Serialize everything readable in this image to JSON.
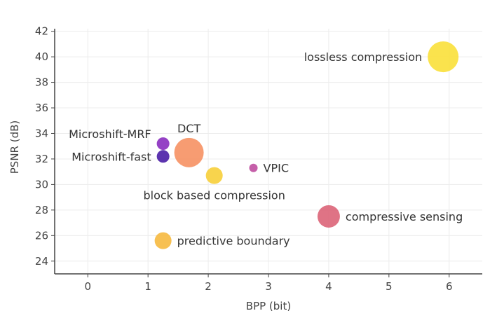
{
  "chart_data": {
    "type": "scatter",
    "title": "",
    "xlabel": "BPP (bit)",
    "ylabel": "PSNR (dB)",
    "xlim": [
      -0.55,
      6.55
    ],
    "ylim": [
      23,
      42.2
    ],
    "xticks": [
      0,
      1,
      2,
      3,
      4,
      5,
      6
    ],
    "yticks": [
      24,
      26,
      28,
      30,
      32,
      34,
      36,
      38,
      40,
      42
    ],
    "grid": true,
    "legend": "none",
    "points": [
      {
        "label": "lossless compression",
        "x": 5.9,
        "y": 40.0,
        "size": 22,
        "color": "#f9e03a",
        "label_side": "left"
      },
      {
        "label": "Microshift-MRF",
        "x": 1.25,
        "y": 33.2,
        "size": 9,
        "color": "#8a2dbf",
        "label_side": "upper-left"
      },
      {
        "label": "Microshift-fast",
        "x": 1.25,
        "y": 32.2,
        "size": 9,
        "color": "#4a1ea6",
        "label_side": "left"
      },
      {
        "label": "DCT",
        "x": 1.68,
        "y": 32.5,
        "size": 21,
        "color": "#f69163",
        "label_side": "above"
      },
      {
        "label": "VPIC",
        "x": 2.75,
        "y": 31.3,
        "size": 6,
        "color": "#bf4ea0",
        "label_side": "right"
      },
      {
        "label": "block based compression",
        "x": 2.1,
        "y": 30.7,
        "size": 12,
        "color": "#f7cf3a",
        "label_side": "below"
      },
      {
        "label": "compressive sensing",
        "x": 4.0,
        "y": 27.5,
        "size": 16,
        "color": "#dc6478",
        "label_side": "right"
      },
      {
        "label": "predictive boundary",
        "x": 1.25,
        "y": 25.6,
        "size": 12,
        "color": "#f6b93f",
        "label_side": "right"
      }
    ]
  }
}
